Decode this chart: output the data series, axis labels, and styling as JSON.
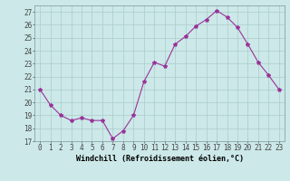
{
  "x": [
    0,
    1,
    2,
    3,
    4,
    5,
    6,
    7,
    8,
    9,
    10,
    11,
    12,
    13,
    14,
    15,
    16,
    17,
    18,
    19,
    20,
    21,
    22,
    23
  ],
  "y": [
    21,
    19.8,
    19,
    18.6,
    18.8,
    18.6,
    18.6,
    17.2,
    17.8,
    19,
    21.6,
    23.1,
    22.8,
    24.5,
    25.1,
    25.9,
    26.4,
    27.1,
    26.6,
    25.8,
    24.5,
    23.1,
    22.1,
    21.0
  ],
  "line_color": "#993399",
  "marker": "*",
  "marker_size": 3,
  "bg_color": "#cce8e8",
  "grid_color": "#aacccc",
  "xlabel": "Windchill (Refroidissement éolien,°C)",
  "xlabel_fontsize": 6.0,
  "ylabel_ticks": [
    17,
    18,
    19,
    20,
    21,
    22,
    23,
    24,
    25,
    26,
    27
  ],
  "xlim": [
    -0.5,
    23.5
  ],
  "ylim": [
    17,
    27.5
  ],
  "tick_fontsize": 5.5,
  "title": ""
}
